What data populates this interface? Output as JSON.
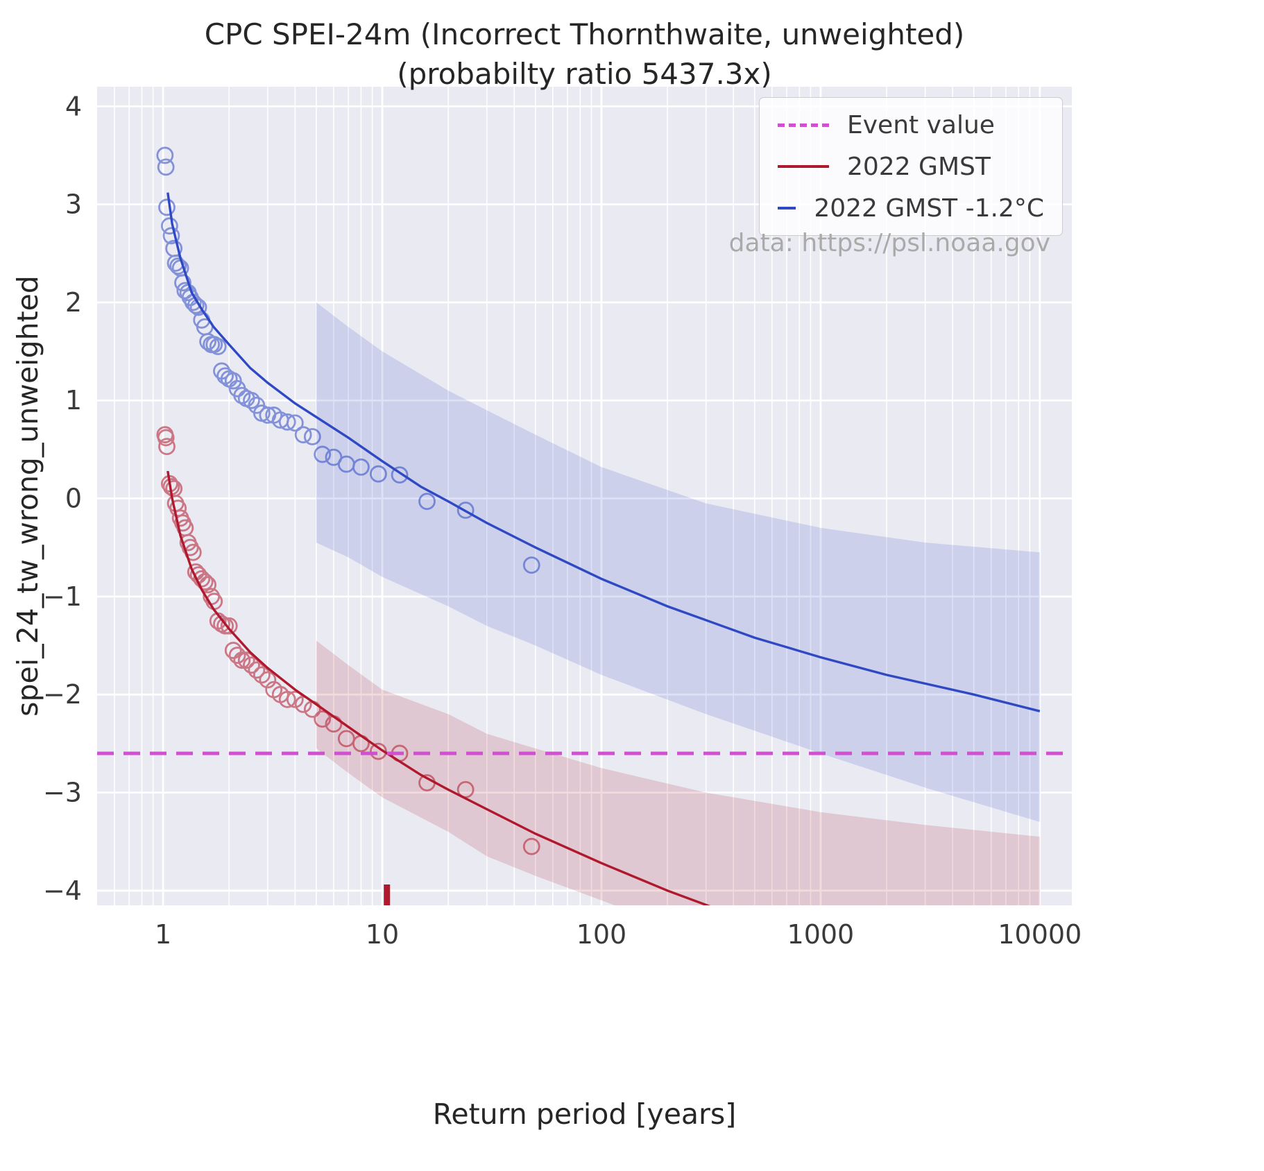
{
  "title": {
    "line1": "CPC SPEI-24m (Incorrect Thornthwaite, unweighted)",
    "line2": "(probabilty ratio 5437.3x)"
  },
  "annotation": "data: https://psl.noaa.gov",
  "legend": {
    "items": [
      {
        "label": "Event value",
        "color": "#d14fd1",
        "dash": true
      },
      {
        "label": "2022 GMST",
        "color": "#b0182d",
        "dash": false
      },
      {
        "label": "2022 GMST -1.2°C",
        "color": "#2f49c4",
        "dash": false
      }
    ]
  },
  "chart_data": {
    "type": "line",
    "title": "CPC SPEI-24m (Incorrect Thornthwaite, unweighted) (probabilty ratio 5437.3x)",
    "xlabel": "Return period [years]",
    "ylabel": "spei_24_tw_wrong_unweighted",
    "x_scale": "log",
    "grid": true,
    "legend_position": "upper right",
    "xlim": [
      0.5,
      14000
    ],
    "ylim": [
      -4.15,
      4.2
    ],
    "x_ticks": [
      1,
      10,
      100,
      1000,
      10000
    ],
    "y_ticks": [
      -4,
      -3,
      -2,
      -1,
      0,
      1,
      2,
      3,
      4
    ],
    "event_value": -2.6,
    "event_return_period": 10.5,
    "colors": {
      "axes_bg": "#eaeaf2",
      "grid": "#ffffff",
      "event": "#d14fd1"
    },
    "series": [
      {
        "name": "2022 GMST -1.2°C",
        "color": "#2f49c4",
        "line": [
          [
            1.05,
            3.12
          ],
          [
            1.1,
            2.8
          ],
          [
            1.2,
            2.45
          ],
          [
            1.35,
            2.1
          ],
          [
            1.5,
            1.93
          ],
          [
            1.7,
            1.75
          ],
          [
            2,
            1.57
          ],
          [
            2.5,
            1.33
          ],
          [
            3,
            1.18
          ],
          [
            4,
            0.97
          ],
          [
            5,
            0.83
          ],
          [
            7,
            0.62
          ],
          [
            10,
            0.38
          ],
          [
            15,
            0.12
          ],
          [
            20,
            -0.03
          ],
          [
            30,
            -0.25
          ],
          [
            50,
            -0.5
          ],
          [
            100,
            -0.82
          ],
          [
            200,
            -1.1
          ],
          [
            500,
            -1.42
          ],
          [
            1000,
            -1.62
          ],
          [
            2000,
            -1.8
          ],
          [
            5000,
            -2.0
          ],
          [
            10000,
            -2.17
          ]
        ],
        "points": [
          [
            48,
            -0.68
          ],
          [
            24,
            -0.12
          ],
          [
            16,
            -0.03
          ],
          [
            12,
            0.24
          ],
          [
            9.6,
            0.25
          ],
          [
            8,
            0.32
          ],
          [
            6.86,
            0.35
          ],
          [
            6,
            0.42
          ],
          [
            5.33,
            0.45
          ],
          [
            4.8,
            0.63
          ],
          [
            4.36,
            0.65
          ],
          [
            4,
            0.77
          ],
          [
            3.69,
            0.78
          ],
          [
            3.43,
            0.8
          ],
          [
            3.2,
            0.85
          ],
          [
            3,
            0.85
          ],
          [
            2.82,
            0.87
          ],
          [
            2.67,
            0.95
          ],
          [
            2.53,
            1.0
          ],
          [
            2.4,
            1.02
          ],
          [
            2.29,
            1.05
          ],
          [
            2.18,
            1.12
          ],
          [
            2.09,
            1.2
          ],
          [
            2.0,
            1.22
          ],
          [
            1.92,
            1.25
          ],
          [
            1.85,
            1.3
          ],
          [
            1.78,
            1.55
          ],
          [
            1.71,
            1.57
          ],
          [
            1.66,
            1.57
          ],
          [
            1.6,
            1.6
          ],
          [
            1.55,
            1.75
          ],
          [
            1.5,
            1.82
          ],
          [
            1.45,
            1.95
          ],
          [
            1.41,
            1.97
          ],
          [
            1.37,
            2.0
          ],
          [
            1.33,
            2.05
          ],
          [
            1.3,
            2.1
          ],
          [
            1.26,
            2.12
          ],
          [
            1.23,
            2.2
          ],
          [
            1.2,
            2.35
          ],
          [
            1.17,
            2.37
          ],
          [
            1.14,
            2.4
          ],
          [
            1.12,
            2.55
          ],
          [
            1.09,
            2.68
          ],
          [
            1.07,
            2.78
          ],
          [
            1.04,
            2.97
          ],
          [
            1.03,
            3.38
          ],
          [
            1.02,
            3.5
          ]
        ],
        "band": {
          "x": [
            5,
            7,
            10,
            20,
            30,
            50,
            100,
            300,
            1000,
            3000,
            10000
          ],
          "upper": [
            2.0,
            1.75,
            1.5,
            1.1,
            0.9,
            0.65,
            0.32,
            -0.05,
            -0.3,
            -0.45,
            -0.55
          ],
          "lower": [
            -0.45,
            -0.6,
            -0.8,
            -1.1,
            -1.3,
            -1.5,
            -1.8,
            -2.2,
            -2.6,
            -2.95,
            -3.3
          ]
        }
      },
      {
        "name": "2022 GMST",
        "color": "#b0182d",
        "line": [
          [
            1.05,
            0.28
          ],
          [
            1.1,
            0.0
          ],
          [
            1.2,
            -0.38
          ],
          [
            1.35,
            -0.72
          ],
          [
            1.5,
            -0.93
          ],
          [
            1.7,
            -1.13
          ],
          [
            2,
            -1.33
          ],
          [
            2.5,
            -1.57
          ],
          [
            3,
            -1.73
          ],
          [
            4,
            -1.95
          ],
          [
            5,
            -2.1
          ],
          [
            7,
            -2.33
          ],
          [
            10,
            -2.57
          ],
          [
            15,
            -2.82
          ],
          [
            20,
            -2.97
          ],
          [
            30,
            -3.17
          ],
          [
            50,
            -3.42
          ],
          [
            100,
            -3.72
          ],
          [
            200,
            -4.0
          ],
          [
            400,
            -4.25
          ],
          [
            700,
            -4.45
          ]
        ],
        "points": [
          [
            48,
            -3.55
          ],
          [
            24,
            -2.97
          ],
          [
            16,
            -2.9
          ],
          [
            12,
            -2.6
          ],
          [
            9.6,
            -2.58
          ],
          [
            8,
            -2.5
          ],
          [
            6.86,
            -2.45
          ],
          [
            6,
            -2.3
          ],
          [
            5.33,
            -2.25
          ],
          [
            4.8,
            -2.15
          ],
          [
            4.36,
            -2.1
          ],
          [
            4,
            -2.05
          ],
          [
            3.69,
            -2.05
          ],
          [
            3.43,
            -2.0
          ],
          [
            3.2,
            -1.95
          ],
          [
            3,
            -1.85
          ],
          [
            2.82,
            -1.8
          ],
          [
            2.67,
            -1.75
          ],
          [
            2.53,
            -1.7
          ],
          [
            2.4,
            -1.65
          ],
          [
            2.29,
            -1.65
          ],
          [
            2.18,
            -1.6
          ],
          [
            2.09,
            -1.55
          ],
          [
            2.0,
            -1.3
          ],
          [
            1.92,
            -1.3
          ],
          [
            1.85,
            -1.28
          ],
          [
            1.78,
            -1.25
          ],
          [
            1.71,
            -1.05
          ],
          [
            1.66,
            -1.0
          ],
          [
            1.6,
            -0.88
          ],
          [
            1.55,
            -0.85
          ],
          [
            1.5,
            -0.82
          ],
          [
            1.45,
            -0.78
          ],
          [
            1.41,
            -0.75
          ],
          [
            1.37,
            -0.55
          ],
          [
            1.33,
            -0.5
          ],
          [
            1.3,
            -0.45
          ],
          [
            1.26,
            -0.3
          ],
          [
            1.23,
            -0.25
          ],
          [
            1.2,
            -0.2
          ],
          [
            1.17,
            -0.1
          ],
          [
            1.14,
            -0.05
          ],
          [
            1.12,
            0.1
          ],
          [
            1.09,
            0.12
          ],
          [
            1.07,
            0.15
          ],
          [
            1.04,
            0.53
          ],
          [
            1.03,
            0.62
          ],
          [
            1.02,
            0.65
          ]
        ],
        "band": {
          "x": [
            5,
            7,
            10,
            20,
            30,
            50,
            100,
            300,
            1000,
            3000,
            10000
          ],
          "upper": [
            -1.45,
            -1.7,
            -1.95,
            -2.2,
            -2.4,
            -2.55,
            -2.75,
            -3.0,
            -3.2,
            -3.33,
            -3.45
          ],
          "lower": [
            -2.55,
            -2.8,
            -3.05,
            -3.4,
            -3.65,
            -3.85,
            -4.1,
            -4.5,
            -4.8,
            -5.0,
            -5.2
          ]
        }
      }
    ]
  }
}
